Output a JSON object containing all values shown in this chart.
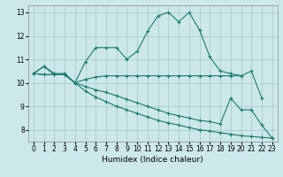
{
  "xlabel": "Humidex (Indice chaleur)",
  "bg_color": "#cce8ea",
  "grid_color": "#aacccc",
  "line_color": "#1a7a6e",
  "xlim": [
    -0.5,
    23.5
  ],
  "ylim": [
    7.5,
    13.3
  ],
  "yticks": [
    8,
    9,
    10,
    11,
    12,
    13
  ],
  "xticks": [
    0,
    1,
    2,
    3,
    4,
    5,
    6,
    7,
    8,
    9,
    10,
    11,
    12,
    13,
    14,
    15,
    16,
    17,
    18,
    19,
    20,
    21,
    22,
    23
  ],
  "line1_x": [
    0,
    1,
    2,
    3,
    4,
    5,
    6,
    7,
    8,
    9,
    10,
    11,
    12,
    13,
    14,
    15,
    16,
    17,
    18,
    19,
    20,
    21,
    22,
    23
  ],
  "line1_y": [
    10.4,
    10.7,
    10.4,
    10.4,
    10.0,
    10.9,
    11.5,
    11.5,
    11.5,
    11.0,
    11.35,
    12.2,
    12.85,
    13.0,
    12.6,
    13.0,
    12.25,
    11.1,
    10.5,
    10.4,
    10.3,
    10.5,
    9.35,
    null
  ],
  "line2_x": [
    0,
    1,
    2,
    3,
    4,
    5,
    6,
    7,
    8,
    9,
    10,
    11,
    12,
    13,
    14,
    15,
    16,
    17,
    18,
    19,
    20
  ],
  "line2_y": [
    10.4,
    10.7,
    10.35,
    10.35,
    10.0,
    10.15,
    10.25,
    10.3,
    10.3,
    10.3,
    10.3,
    10.3,
    10.3,
    10.3,
    10.3,
    10.3,
    10.3,
    10.3,
    10.3,
    10.3,
    10.3
  ],
  "line3_x": [
    0,
    1,
    2,
    3,
    4,
    5,
    6,
    7,
    8,
    9,
    10,
    11,
    12,
    13,
    14,
    15,
    16,
    17,
    18,
    19,
    20,
    21,
    22,
    23
  ],
  "line3_y": [
    10.4,
    10.35,
    10.35,
    10.35,
    10.0,
    9.85,
    9.7,
    9.6,
    9.45,
    9.3,
    9.15,
    9.0,
    8.85,
    8.7,
    8.6,
    8.5,
    8.4,
    8.35,
    8.25,
    9.35,
    8.85,
    8.85,
    8.2,
    7.65
  ],
  "line4_x": [
    0,
    1,
    2,
    3,
    4,
    5,
    6,
    7,
    8,
    9,
    10,
    11,
    12,
    13,
    14,
    15,
    16,
    17,
    18,
    19,
    20,
    21,
    22,
    23
  ],
  "line4_y": [
    10.4,
    10.35,
    10.35,
    10.35,
    10.0,
    9.65,
    9.4,
    9.2,
    9.0,
    8.85,
    8.7,
    8.55,
    8.4,
    8.3,
    8.2,
    8.1,
    8.0,
    7.95,
    7.88,
    7.82,
    7.75,
    7.72,
    7.68,
    7.65
  ]
}
